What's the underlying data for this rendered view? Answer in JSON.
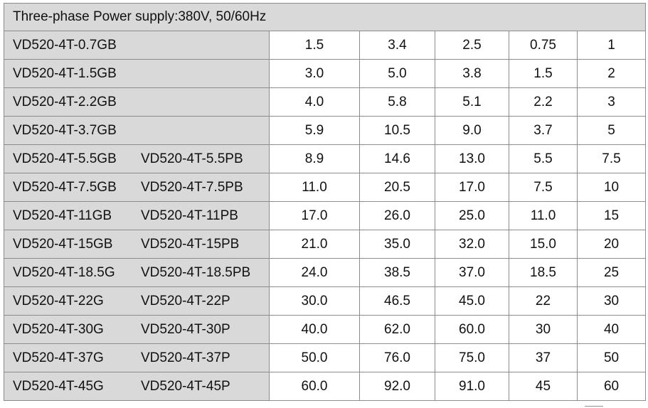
{
  "header": {
    "title": "Three-phase Power supply:380V, 50/60Hz"
  },
  "rows": [
    {
      "model_g": "VD520-4T-0.7GB",
      "model_p": "",
      "values": [
        "1.5",
        "3.4",
        "2.5",
        "0.75",
        "1"
      ]
    },
    {
      "model_g": "VD520-4T-1.5GB",
      "model_p": "",
      "values": [
        "3.0",
        "5.0",
        "3.8",
        "1.5",
        "2"
      ]
    },
    {
      "model_g": "VD520-4T-2.2GB",
      "model_p": "",
      "values": [
        "4.0",
        "5.8",
        "5.1",
        "2.2",
        "3"
      ]
    },
    {
      "model_g": "VD520-4T-3.7GB",
      "model_p": "",
      "values": [
        "5.9",
        "10.5",
        "9.0",
        "3.7",
        "5"
      ]
    },
    {
      "model_g": "VD520-4T-5.5GB",
      "model_p": "VD520-4T-5.5PB",
      "values": [
        "8.9",
        "14.6",
        "13.0",
        "5.5",
        "7.5"
      ]
    },
    {
      "model_g": "VD520-4T-7.5GB",
      "model_p": "VD520-4T-7.5PB",
      "values": [
        "11.0",
        "20.5",
        "17.0",
        "7.5",
        "10"
      ]
    },
    {
      "model_g": "VD520-4T-11GB",
      "model_p": "VD520-4T-11PB",
      "values": [
        "17.0",
        "26.0",
        "25.0",
        "11.0",
        "15"
      ]
    },
    {
      "model_g": "VD520-4T-15GB",
      "model_p": "VD520-4T-15PB",
      "values": [
        "21.0",
        "35.0",
        "32.0",
        "15.0",
        "20"
      ]
    },
    {
      "model_g": "VD520-4T-18.5G",
      "model_p": "VD520-4T-18.5PB",
      "values": [
        "24.0",
        "38.5",
        "37.0",
        "18.5",
        "25"
      ]
    },
    {
      "model_g": "VD520-4T-22G",
      "model_p": "VD520-4T-22P",
      "values": [
        "30.0",
        "46.5",
        "45.0",
        "22",
        "30"
      ]
    },
    {
      "model_g": "VD520-4T-30G",
      "model_p": "VD520-4T-30P",
      "values": [
        "40.0",
        "62.0",
        "60.0",
        "30",
        "40"
      ]
    },
    {
      "model_g": "VD520-4T-37G",
      "model_p": "VD520-4T-37P",
      "values": [
        "50.0",
        "76.0",
        "75.0",
        "37",
        "50"
      ]
    },
    {
      "model_g": "VD520-4T-45G",
      "model_p": "VD520-4T-45P",
      "values": [
        "60.0",
        "92.0",
        "91.0",
        "45",
        "60"
      ]
    }
  ]
}
